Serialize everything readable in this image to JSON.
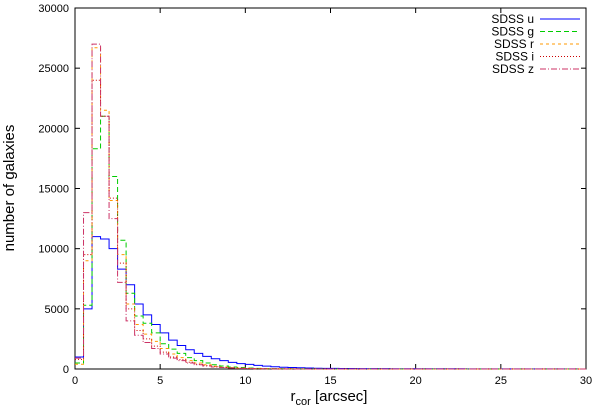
{
  "chart_data": {
    "type": "line",
    "subtype": "step-histogram",
    "title": "",
    "xlabel_main": "r",
    "xlabel_sub": "cor",
    "xlabel_unit": " [arcsec]",
    "ylabel": "number of galaxies",
    "xlim": [
      0,
      30
    ],
    "ylim": [
      0,
      30000
    ],
    "xticks": [
      0,
      5,
      10,
      15,
      20,
      25,
      30
    ],
    "yticks": [
      0,
      5000,
      10000,
      15000,
      20000,
      25000,
      30000
    ],
    "grid": false,
    "legend_position": "top-right",
    "bin_width": 0.5,
    "bin_start": 0,
    "series": [
      {
        "name": "SDSS u",
        "color": "#0000ff",
        "dash": "",
        "values": [
          1000,
          5000,
          11000,
          10800,
          10000,
          8300,
          7000,
          5400,
          4500,
          3700,
          3000,
          2400,
          1950,
          1600,
          1300,
          1050,
          850,
          700,
          550,
          450,
          380,
          300,
          240,
          190,
          150,
          120,
          100,
          80,
          65,
          55,
          48,
          42,
          38,
          35,
          32,
          30,
          28,
          26,
          24,
          22,
          21,
          20,
          19,
          18,
          17,
          16,
          15,
          14,
          13,
          12,
          12,
          11,
          10,
          10,
          9,
          9,
          8,
          8,
          8,
          0
        ]
      },
      {
        "name": "SDSS g",
        "color": "#00cc00",
        "dash": "5,3",
        "values": [
          500,
          5300,
          18300,
          21000,
          16000,
          10700,
          6300,
          4400,
          3800,
          3000,
          2100,
          1650,
          1300,
          950,
          700,
          500,
          350,
          250,
          170,
          120,
          80,
          55,
          40,
          30,
          22,
          16,
          12,
          9,
          7,
          5,
          4,
          3,
          3,
          2,
          2,
          2,
          1,
          1,
          1,
          1,
          1,
          1,
          1,
          1,
          1,
          1,
          1,
          1,
          1,
          1,
          0,
          0,
          0,
          0,
          0,
          0,
          0,
          0,
          0,
          0
        ]
      },
      {
        "name": "SDSS r",
        "color": "#ff9900",
        "dash": "3,3",
        "values": [
          400,
          9000,
          26700,
          21500,
          14000,
          9500,
          5400,
          3700,
          2900,
          2300,
          1700,
          1250,
          950,
          700,
          500,
          350,
          230,
          160,
          110,
          75,
          50,
          35,
          25,
          18,
          13,
          9,
          7,
          5,
          4,
          3,
          2,
          2,
          2,
          1,
          1,
          1,
          1,
          1,
          1,
          1,
          1,
          1,
          1,
          1,
          1,
          1,
          1,
          1,
          1,
          1,
          0,
          0,
          0,
          0,
          0,
          0,
          0,
          0,
          0,
          0
        ]
      },
      {
        "name": "SDSS i",
        "color": "#cc0000",
        "dash": "1,2",
        "values": [
          800,
          9500,
          24000,
          21000,
          14200,
          8800,
          5000,
          3200,
          2500,
          1900,
          1400,
          1000,
          780,
          560,
          400,
          280,
          190,
          130,
          90,
          60,
          40,
          28,
          20,
          14,
          10,
          7,
          5,
          4,
          3,
          2,
          2,
          2,
          1,
          1,
          1,
          1,
          1,
          1,
          1,
          1,
          1,
          1,
          1,
          1,
          1,
          1,
          1,
          1,
          1,
          1,
          0,
          0,
          0,
          0,
          0,
          0,
          0,
          0,
          0,
          0
        ]
      },
      {
        "name": "SDSS z",
        "color": "#cc3366",
        "dash": "6,2,1,2",
        "values": [
          900,
          13000,
          27000,
          21000,
          12500,
          7200,
          4000,
          2800,
          2200,
          1700,
          1250,
          900,
          700,
          500,
          350,
          250,
          170,
          120,
          80,
          55,
          38,
          26,
          18,
          13,
          9,
          7,
          5,
          4,
          3,
          2,
          2,
          2,
          1,
          1,
          1,
          1,
          1,
          1,
          1,
          1,
          1,
          1,
          1,
          1,
          1,
          1,
          1,
          1,
          1,
          1,
          0,
          0,
          0,
          0,
          0,
          0,
          0,
          0,
          0,
          0
        ]
      }
    ]
  }
}
